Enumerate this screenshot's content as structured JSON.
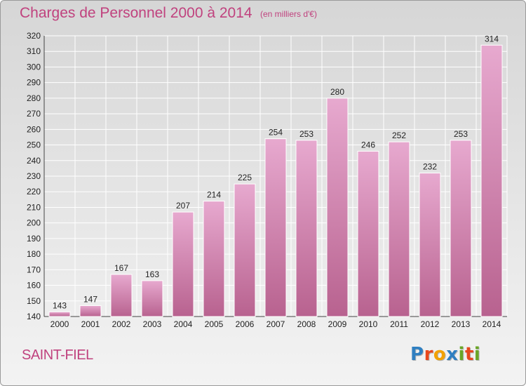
{
  "header": {
    "title": "Charges de Personnel 2000 à 2014",
    "subtitle": "(en milliers d'€)"
  },
  "footer": {
    "commune": "SAINT-FIEL",
    "logo_text": "Proxiti"
  },
  "colors": {
    "title": "#c0427e",
    "bar_top": "#e7a9cf",
    "bar_bottom": "#b8628f",
    "logo": [
      "#2f7fc1",
      "#e8471c",
      "#f2a100",
      "#2f7fc1",
      "#6aa626",
      "#e8471c",
      "#6aa626"
    ]
  },
  "chart_data": {
    "type": "bar",
    "title": "Charges de Personnel 2000 à 2014",
    "subtitle": "(en milliers d'€)",
    "categories": [
      "2000",
      "2001",
      "2002",
      "2003",
      "2004",
      "2005",
      "2006",
      "2007",
      "2008",
      "2009",
      "2010",
      "2011",
      "2012",
      "2013",
      "2014"
    ],
    "values": [
      143,
      147,
      167,
      163,
      207,
      214,
      225,
      254,
      253,
      280,
      246,
      252,
      232,
      253,
      314
    ],
    "ylim": [
      140,
      320
    ],
    "yticks": [
      140,
      150,
      160,
      170,
      180,
      190,
      200,
      210,
      220,
      230,
      240,
      250,
      260,
      270,
      280,
      290,
      300,
      310,
      320
    ],
    "grid": true,
    "data_labels": true
  }
}
